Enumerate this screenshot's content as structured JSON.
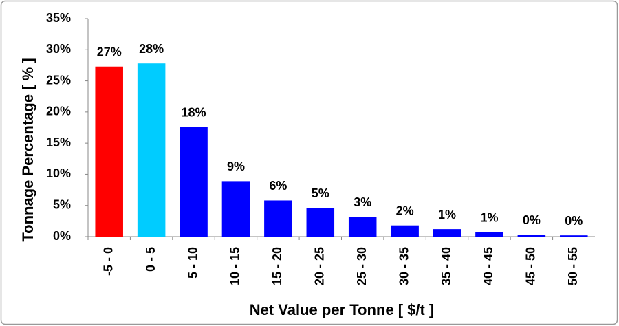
{
  "chart_data": {
    "type": "bar",
    "x_label": "Net Value per Tonne [ $/t ]",
    "y_label": "Tonnage Percentage [ % ]",
    "categories": [
      "-5 - 0",
      "0 - 5",
      "5 - 10",
      "10 - 15",
      "15 - 20",
      "20 - 25",
      "25 - 30",
      "30 - 35",
      "35 - 40",
      "40 - 45",
      "45 - 50",
      "50 - 55"
    ],
    "values": [
      27.3,
      27.8,
      17.6,
      8.9,
      5.8,
      4.6,
      3.2,
      1.8,
      1.2,
      0.7,
      0.3,
      0.2
    ],
    "value_labels": [
      "27%",
      "28%",
      "18%",
      "9%",
      "6%",
      "5%",
      "3%",
      "2%",
      "1%",
      "1%",
      "0%",
      "0%"
    ],
    "colors": [
      "#ff0000",
      "#00ccff",
      "#0000ff",
      "#0000ff",
      "#0000ff",
      "#0000ff",
      "#0000ff",
      "#0000ff",
      "#0000ff",
      "#0000ff",
      "#0000ff",
      "#0000ff"
    ],
    "ylim": [
      0,
      35
    ],
    "yticks": [
      {
        "value": 0,
        "label": "0%"
      },
      {
        "value": 5,
        "label": "5%"
      },
      {
        "value": 10,
        "label": "10%"
      },
      {
        "value": 15,
        "label": "15%"
      },
      {
        "value": 20,
        "label": "20%"
      },
      {
        "value": 25,
        "label": "25%"
      },
      {
        "value": 30,
        "label": "30%"
      },
      {
        "value": 35,
        "label": "35%"
      }
    ],
    "grid": false
  }
}
